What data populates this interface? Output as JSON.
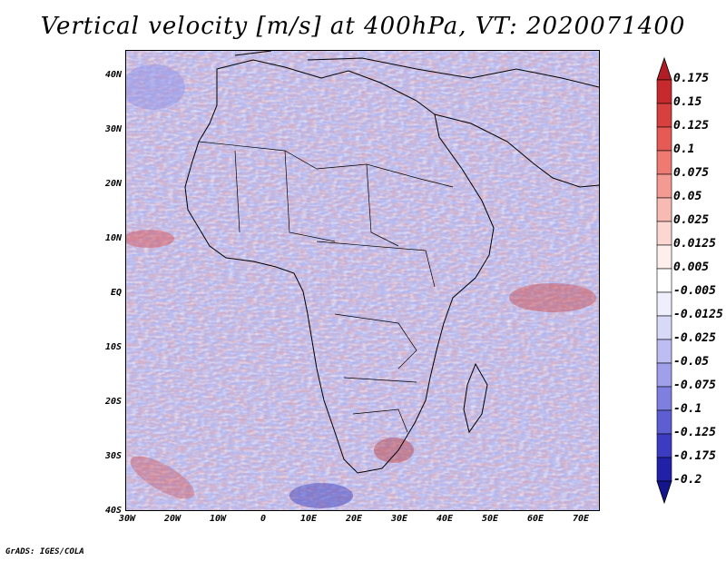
{
  "title": "Vertical velocity [m/s] at 400hPa, VT: 2020071400",
  "credit": "GrADS: IGES/COLA",
  "lat_labels": [
    "40N",
    "30N",
    "20N",
    "10N",
    "EQ",
    "10S",
    "20S",
    "30S",
    "40S"
  ],
  "lon_labels": [
    "30W",
    "20W",
    "10W",
    "0",
    "10E",
    "20E",
    "30E",
    "40E",
    "50E",
    "60E",
    "70E"
  ],
  "colorbar": {
    "labels": [
      "0.175",
      "0.15",
      "0.125",
      "0.1",
      "0.075",
      "0.05",
      "0.025",
      "0.0125",
      "0.005",
      "-0.005",
      "-0.0125",
      "-0.025",
      "-0.05",
      "-0.075",
      "-0.1",
      "-0.125",
      "-0.175",
      "-0.2"
    ],
    "colors": [
      "#b11d22",
      "#c72a2c",
      "#d84040",
      "#e55a55",
      "#ee7a72",
      "#f39a92",
      "#f8bbb3",
      "#fcd7d1",
      "#feefec",
      "#ffffff",
      "#eeeefc",
      "#d8d8f7",
      "#bdbdf2",
      "#9f9fea",
      "#7f7fe0",
      "#5e5ed3",
      "#3c3cc2",
      "#2020a8",
      "#14148e"
    ]
  },
  "map": {
    "land_color": "#c9c9f2",
    "ocean_color": "#b9bdf0",
    "region": "Africa",
    "lon_range": [
      -30,
      75
    ],
    "lat_range": [
      -40,
      45
    ]
  }
}
